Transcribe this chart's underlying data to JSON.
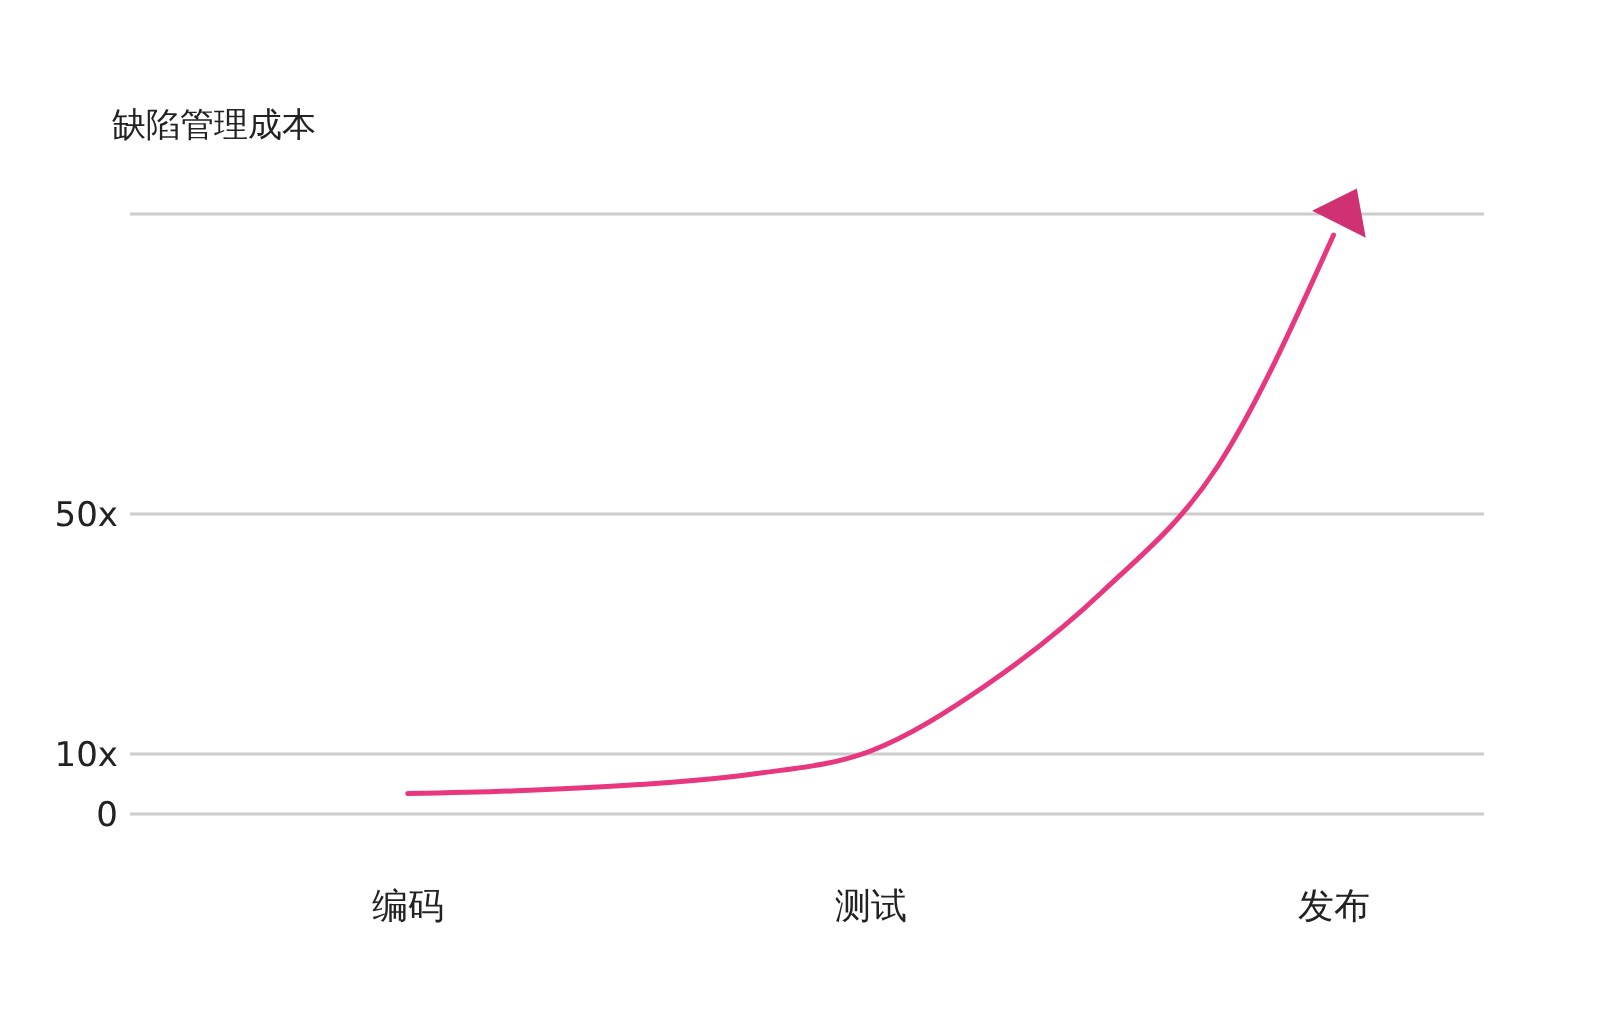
{
  "chart_data": {
    "type": "line",
    "ylabel": "缺陷管理成本",
    "categories": [
      "编码",
      null,
      null,
      null,
      "测试",
      null,
      null,
      null,
      "发布"
    ],
    "ylim": [
      0,
      100
    ],
    "yticks": [
      0,
      {
        "value": 10,
        "label": "10x"
      },
      {
        "value": 50,
        "label": "50x"
      },
      {
        "value": 100,
        "label": null
      }
    ],
    "series": [
      {
        "color": "#e8377f",
        "values": [
          3.4,
          3.9,
          4.9,
          6.7,
          10.5,
          21.5,
          37,
          58,
          96.5
        ]
      }
    ],
    "grid": "y",
    "line_style": "solid"
  }
}
